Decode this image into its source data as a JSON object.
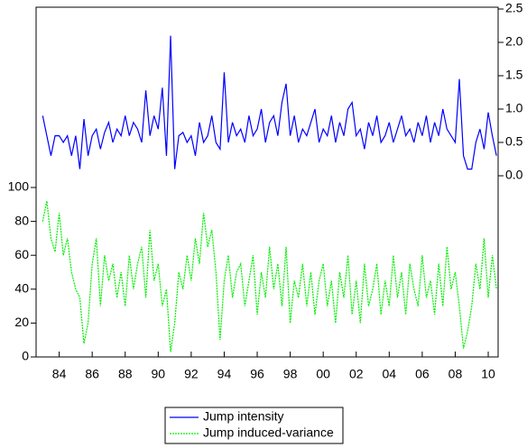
{
  "chart_data": {
    "type": "line",
    "x": [
      1983,
      1983.25,
      1983.5,
      1983.75,
      1984,
      1984.25,
      1984.5,
      1984.75,
      1985,
      1985.25,
      1985.5,
      1985.75,
      1986,
      1986.25,
      1986.5,
      1986.75,
      1987,
      1987.25,
      1987.5,
      1987.75,
      1988,
      1988.25,
      1988.5,
      1988.75,
      1989,
      1989.25,
      1989.5,
      1989.75,
      1990,
      1990.25,
      1990.5,
      1990.75,
      1991,
      1991.25,
      1991.5,
      1991.75,
      1992,
      1992.25,
      1992.5,
      1992.75,
      1993,
      1993.25,
      1993.5,
      1993.75,
      1994,
      1994.25,
      1994.5,
      1994.75,
      1995,
      1995.25,
      1995.5,
      1995.75,
      1996,
      1996.25,
      1996.5,
      1996.75,
      1997,
      1997.25,
      1997.5,
      1997.75,
      1998,
      1998.25,
      1998.5,
      1998.75,
      1999,
      1999.25,
      1999.5,
      1999.75,
      2000,
      2000.25,
      2000.5,
      2000.75,
      2001,
      2001.25,
      2001.5,
      2001.75,
      2002,
      2002.25,
      2002.5,
      2002.75,
      2003,
      2003.25,
      2003.5,
      2003.75,
      2004,
      2004.25,
      2004.5,
      2004.75,
      2005,
      2005.25,
      2005.5,
      2005.75,
      2006,
      2006.25,
      2006.5,
      2006.75,
      2007,
      2007.25,
      2007.5,
      2007.75,
      2008,
      2008.25,
      2008.5,
      2008.75,
      2009,
      2009.25,
      2009.5,
      2009.75,
      2010,
      2010.25,
      2010.5
    ],
    "series": [
      {
        "name": "Jump intensity",
        "color": "#0000ff",
        "axis": "y2",
        "dash": false,
        "values": [
          0.9,
          0.6,
          0.3,
          0.6,
          0.6,
          0.5,
          0.6,
          0.3,
          0.6,
          0.1,
          0.85,
          0.3,
          0.6,
          0.7,
          0.4,
          0.65,
          0.8,
          0.5,
          0.7,
          0.6,
          0.9,
          0.6,
          0.8,
          0.7,
          0.5,
          1.28,
          0.6,
          0.9,
          0.7,
          1.32,
          0.3,
          2.1,
          0.1,
          0.6,
          0.65,
          0.5,
          0.6,
          0.3,
          0.8,
          0.5,
          0.6,
          0.9,
          0.5,
          0.4,
          1.55,
          0.5,
          0.8,
          0.6,
          0.7,
          0.5,
          0.9,
          0.6,
          0.7,
          1.0,
          0.5,
          0.8,
          0.9,
          0.6,
          1.1,
          1.38,
          0.6,
          0.9,
          0.5,
          0.7,
          0.6,
          0.8,
          1.0,
          0.5,
          0.7,
          0.6,
          0.9,
          0.5,
          0.8,
          0.6,
          1.0,
          1.1,
          0.6,
          0.7,
          0.4,
          0.8,
          0.6,
          0.9,
          0.5,
          0.6,
          0.8,
          0.5,
          0.7,
          0.9,
          0.6,
          0.7,
          0.5,
          0.8,
          0.6,
          0.9,
          0.5,
          0.8,
          0.6,
          1.0,
          0.7,
          0.6,
          0.5,
          1.45,
          0.3,
          0.1,
          0.1,
          0.5,
          0.7,
          0.4,
          0.95,
          0.6,
          0.3
        ]
      },
      {
        "name": "Jump induced-variance",
        "color": "#00ee00",
        "axis": "y",
        "dash": true,
        "values": [
          80,
          92,
          70,
          62,
          85,
          60,
          70,
          50,
          40,
          35,
          8,
          20,
          55,
          70,
          30,
          60,
          45,
          55,
          35,
          50,
          30,
          60,
          40,
          55,
          65,
          35,
          75,
          45,
          55,
          30,
          40,
          3,
          20,
          50,
          40,
          60,
          45,
          70,
          55,
          85,
          65,
          75,
          50,
          10,
          45,
          60,
          35,
          50,
          55,
          30,
          45,
          60,
          25,
          50,
          35,
          65,
          40,
          55,
          30,
          65,
          20,
          45,
          35,
          55,
          30,
          50,
          25,
          45,
          55,
          30,
          45,
          20,
          50,
          35,
          60,
          25,
          45,
          20,
          55,
          30,
          40,
          55,
          25,
          45,
          30,
          60,
          35,
          50,
          25,
          55,
          40,
          30,
          60,
          35,
          45,
          25,
          55,
          30,
          65,
          40,
          50,
          30,
          5,
          15,
          30,
          55,
          40,
          70,
          35,
          60,
          40
        ]
      }
    ],
    "xlim": [
      1982.6,
      2010.6
    ],
    "xticks": [
      {
        "value": 1984,
        "label": "84"
      },
      {
        "value": 1986,
        "label": "86"
      },
      {
        "value": 1988,
        "label": "88"
      },
      {
        "value": 1990,
        "label": "90"
      },
      {
        "value": 1992,
        "label": "92"
      },
      {
        "value": 1994,
        "label": "94"
      },
      {
        "value": 1996,
        "label": "96"
      },
      {
        "value": 1998,
        "label": "98"
      },
      {
        "value": 2000,
        "label": "00"
      },
      {
        "value": 2002,
        "label": "02"
      },
      {
        "value": 2004,
        "label": "04"
      },
      {
        "value": 2006,
        "label": "06"
      },
      {
        "value": 2008,
        "label": "08"
      },
      {
        "value": 2010,
        "label": "10"
      }
    ],
    "ylim": [
      0,
      100
    ],
    "yticks": [
      0,
      20,
      40,
      60,
      80,
      100
    ],
    "y2lim": [
      0,
      2.5
    ],
    "y2ticks": [
      {
        "value": 0,
        "label": "0.0"
      },
      0.5,
      {
        "value": 1,
        "label": "1.0"
      },
      1.5,
      {
        "value": 2,
        "label": "2.0"
      },
      2.5
    ]
  }
}
